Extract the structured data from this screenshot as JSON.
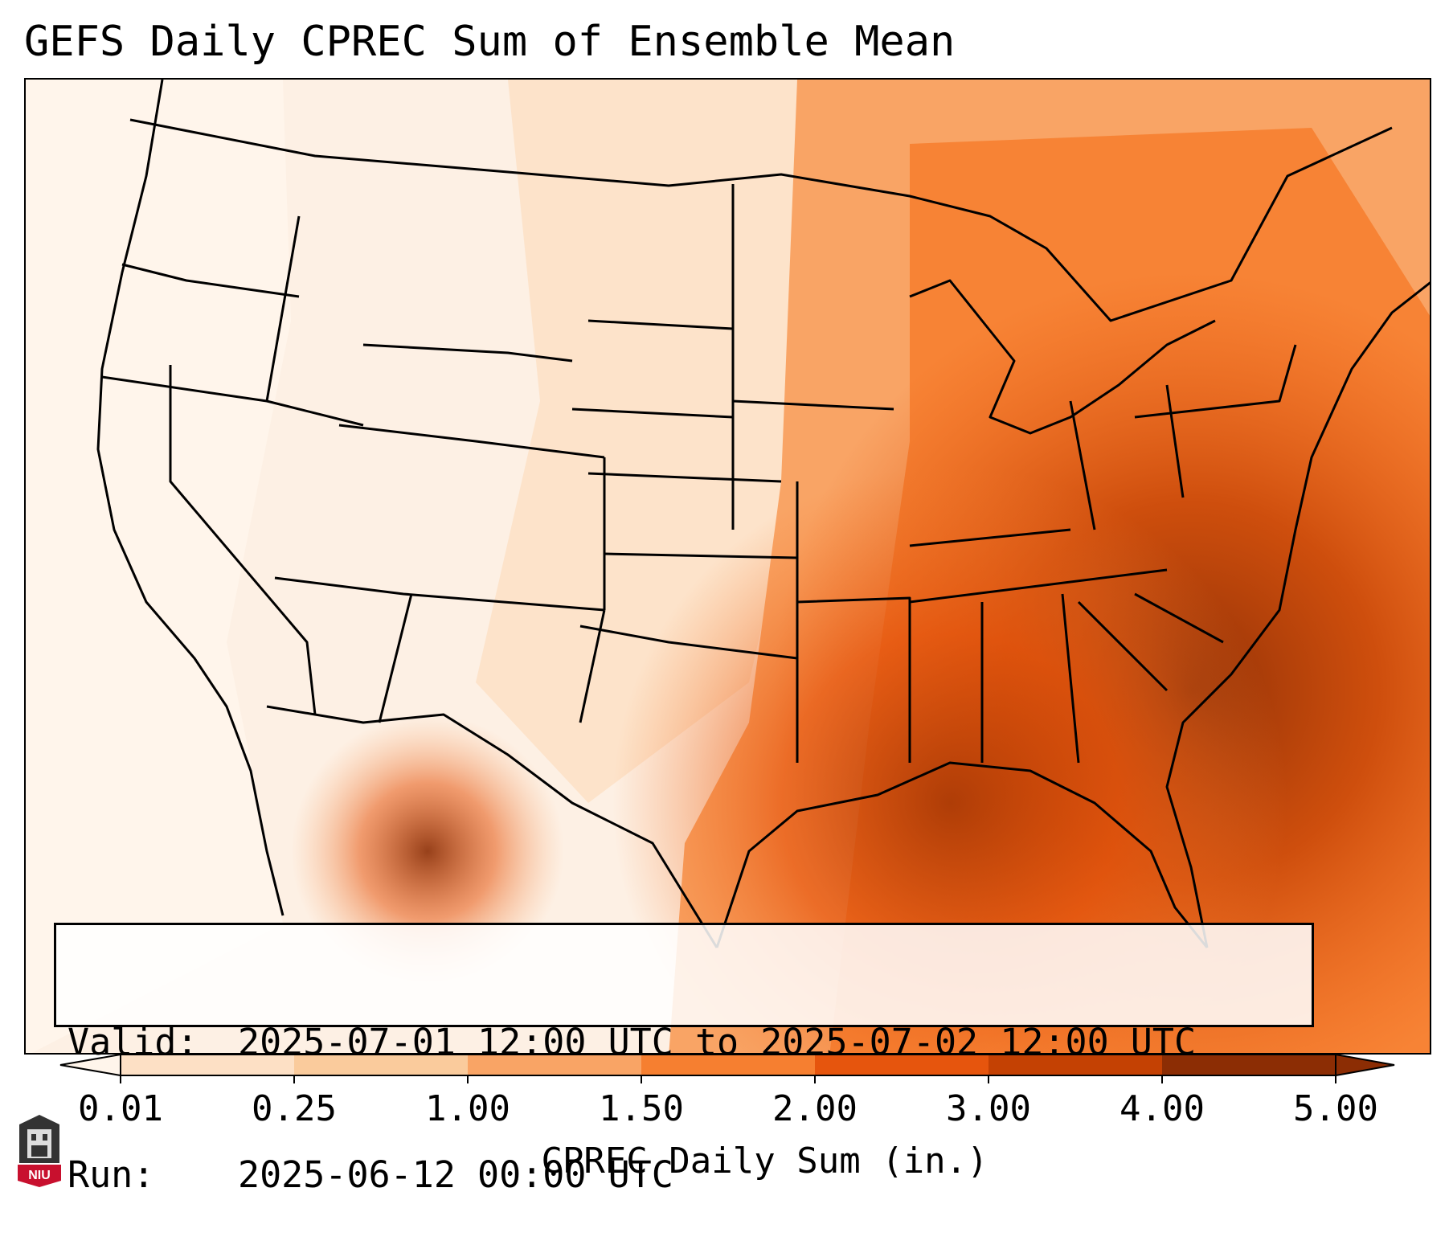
{
  "title": "GEFS Daily CPREC Sum of Ensemble Mean",
  "info": {
    "valid_key": "Valid:",
    "valid_value": "2025-07-01 12:00 UTC to 2025-07-02 12:00 UTC",
    "run_key": "Run:",
    "run_value": "2025-06-12 00:00 UTC"
  },
  "colorbar": {
    "label": "CPREC Daily Sum (in.)",
    "ticks": [
      "0.01",
      "0.25",
      "1.00",
      "1.50",
      "2.00",
      "3.00",
      "4.00",
      "5.00"
    ],
    "colors": [
      "#fff5eb",
      "#fde0c5",
      "#facb9c",
      "#f9a465",
      "#f67f30",
      "#e6550d",
      "#c44103",
      "#8c2d04"
    ]
  },
  "logo": {
    "text": "NIU"
  }
}
